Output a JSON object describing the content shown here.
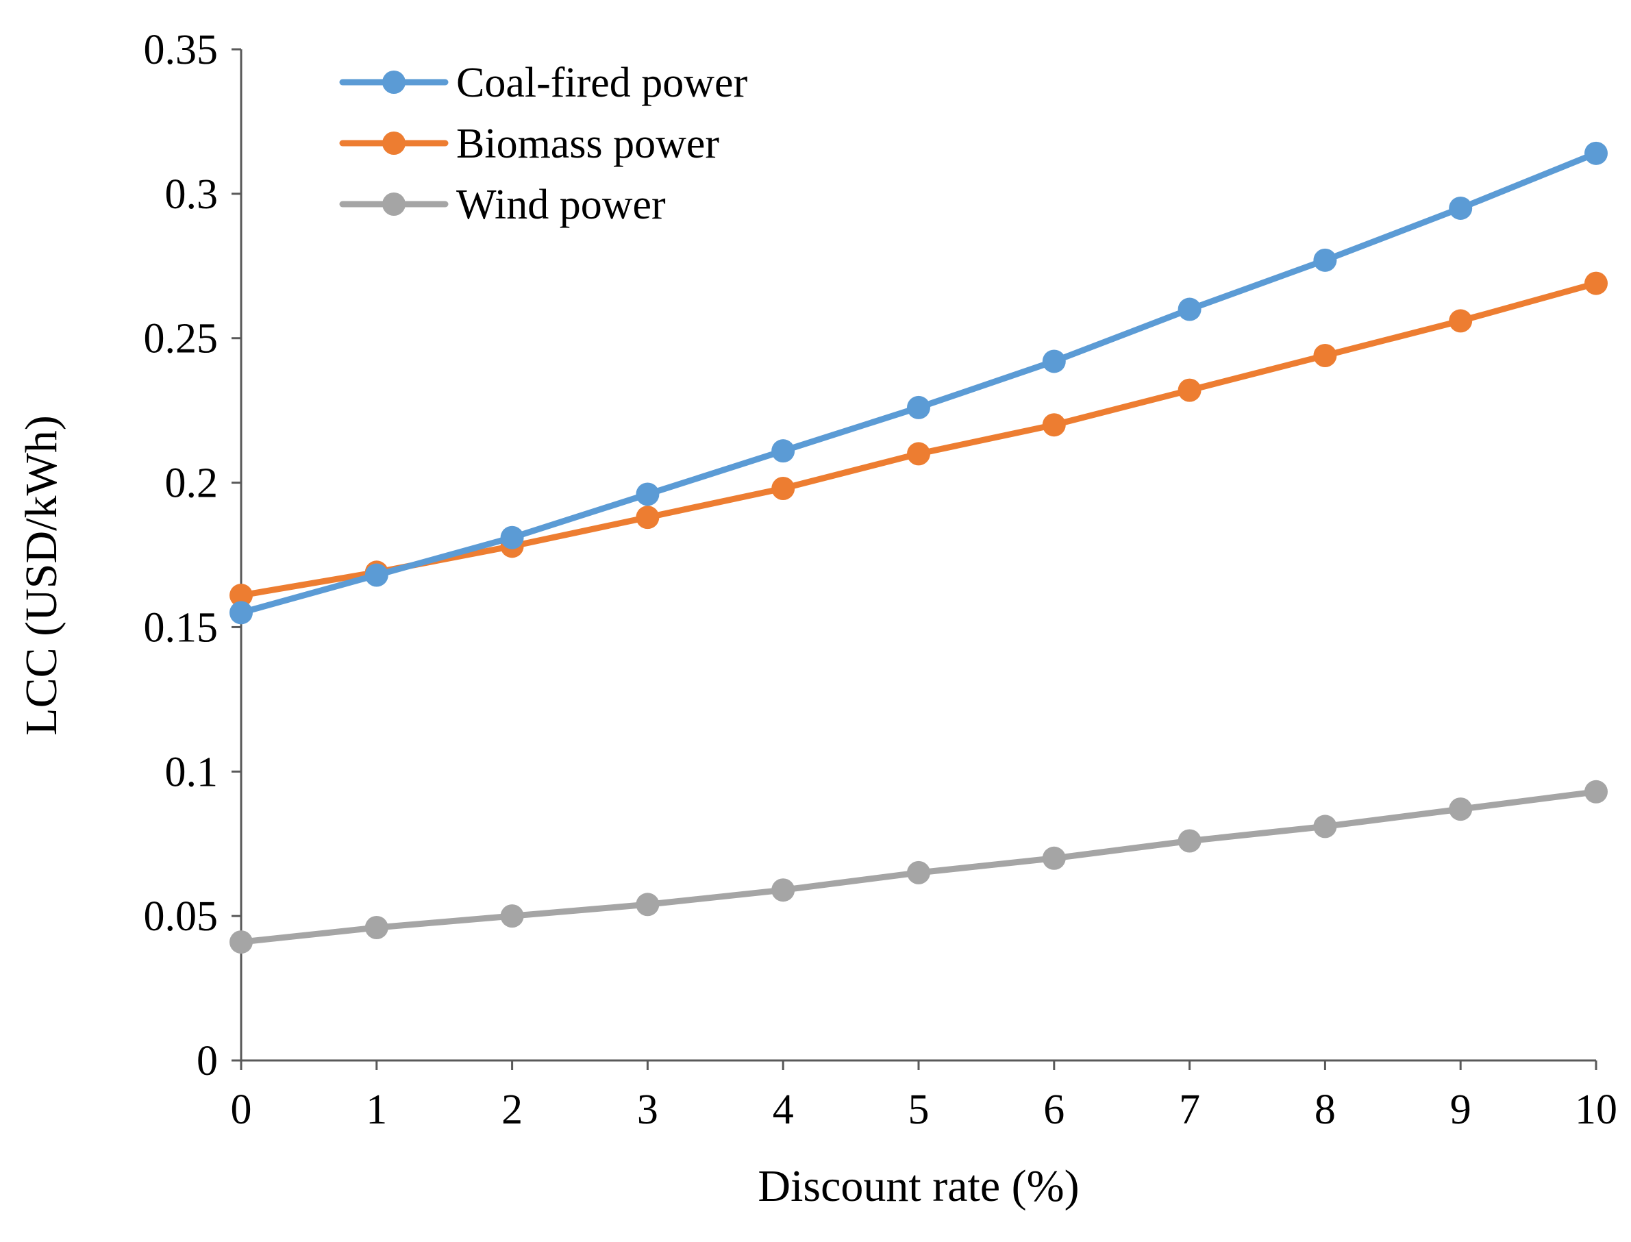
{
  "chart_data": {
    "type": "line",
    "title": "",
    "xlabel": "Discount rate (%)",
    "ylabel": "LCC (USD/kWh)",
    "x": [
      0,
      1,
      2,
      3,
      4,
      5,
      6,
      7,
      8,
      9,
      10
    ],
    "x_tick_labels": [
      "0",
      "1",
      "2",
      "3",
      "4",
      "5",
      "6",
      "7",
      "8",
      "9",
      "10"
    ],
    "xlim": [
      0,
      10
    ],
    "ylim": [
      0,
      0.35
    ],
    "y_ticks": [
      0,
      0.05,
      0.1,
      0.15,
      0.2,
      0.25,
      0.3,
      0.35
    ],
    "y_tick_labels": [
      "0",
      "0.05",
      "0.1",
      "0.15",
      "0.2",
      "0.25",
      "0.3",
      "0.35"
    ],
    "grid": false,
    "legend_position": "top-left",
    "series": [
      {
        "name": "Coal-fired power",
        "color": "#5B9BD5",
        "values": [
          0.155,
          0.168,
          0.181,
          0.196,
          0.211,
          0.226,
          0.242,
          0.26,
          0.277,
          0.295,
          0.314
        ]
      },
      {
        "name": "Biomass power",
        "color": "#ED7D31",
        "values": [
          0.161,
          0.169,
          0.178,
          0.188,
          0.198,
          0.21,
          0.22,
          0.232,
          0.244,
          0.256,
          0.269
        ]
      },
      {
        "name": "Wind power",
        "color": "#A5A5A5",
        "values": [
          0.041,
          0.046,
          0.05,
          0.054,
          0.059,
          0.065,
          0.07,
          0.076,
          0.081,
          0.087,
          0.093
        ]
      }
    ]
  }
}
